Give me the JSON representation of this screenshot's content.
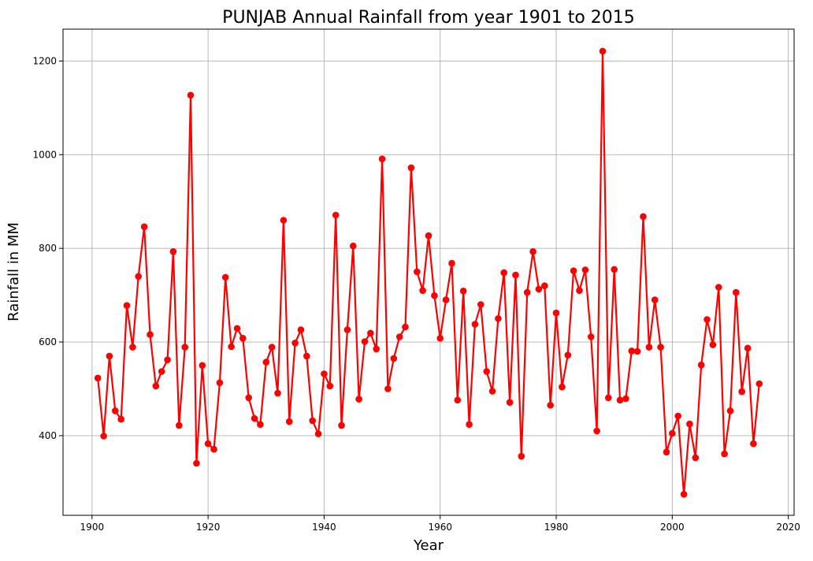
{
  "chart_data": {
    "type": "line",
    "title": "PUNJAB Annual Rainfall from year 1901 to 2015",
    "xlabel": "Year",
    "ylabel": "Rainfall in MM",
    "xlim": [
      1895,
      2021
    ],
    "ylim": [
      230,
      1268
    ],
    "xticks": [
      1900,
      1920,
      1940,
      1960,
      1980,
      2000,
      2020
    ],
    "yticks": [
      400,
      600,
      800,
      1000,
      1200
    ],
    "grid": true,
    "series_color": "#ff0000",
    "x": [
      1901,
      1902,
      1903,
      1904,
      1905,
      1906,
      1907,
      1908,
      1909,
      1910,
      1911,
      1912,
      1913,
      1914,
      1915,
      1916,
      1917,
      1918,
      1919,
      1920,
      1921,
      1922,
      1923,
      1924,
      1925,
      1926,
      1927,
      1928,
      1929,
      1930,
      1931,
      1932,
      1933,
      1934,
      1935,
      1936,
      1937,
      1938,
      1939,
      1940,
      1941,
      1942,
      1943,
      1944,
      1945,
      1946,
      1947,
      1948,
      1949,
      1950,
      1951,
      1952,
      1953,
      1954,
      1955,
      1956,
      1957,
      1958,
      1959,
      1960,
      1961,
      1962,
      1963,
      1964,
      1965,
      1966,
      1967,
      1968,
      1969,
      1970,
      1971,
      1972,
      1973,
      1974,
      1975,
      1976,
      1977,
      1978,
      1979,
      1980,
      1981,
      1982,
      1983,
      1984,
      1985,
      1986,
      1987,
      1988,
      1989,
      1990,
      1991,
      1992,
      1993,
      1994,
      1995,
      1996,
      1997,
      1998,
      1999,
      2000,
      2001,
      2002,
      2003,
      2004,
      2005,
      2006,
      2007,
      2008,
      2009,
      2010,
      2011,
      2012,
      2013,
      2014,
      2015
    ],
    "values": [
      523,
      399,
      570,
      453,
      435,
      678,
      589,
      740,
      846,
      616,
      506,
      537,
      562,
      793,
      422,
      589,
      1127,
      341,
      550,
      383,
      371,
      513,
      738,
      590,
      629,
      608,
      481,
      437,
      424,
      557,
      589,
      491,
      860,
      430,
      598,
      626,
      570,
      432,
      404,
      532,
      506,
      871,
      422,
      626,
      805,
      478,
      601,
      619,
      585,
      991,
      500,
      565,
      611,
      632,
      972,
      750,
      710,
      827,
      699,
      608,
      690,
      768,
      476,
      709,
      424,
      638,
      680,
      537,
      495,
      650,
      748,
      471,
      743,
      356,
      706,
      793,
      713,
      720,
      465,
      662,
      504,
      572,
      752,
      710,
      754,
      611,
      410,
      1221,
      481,
      755,
      476,
      479,
      581,
      580,
      868,
      589,
      690,
      589,
      365,
      405,
      442,
      275,
      425,
      353,
      551,
      648,
      594,
      717,
      361,
      453,
      706,
      494,
      587,
      383,
      511
    ]
  }
}
